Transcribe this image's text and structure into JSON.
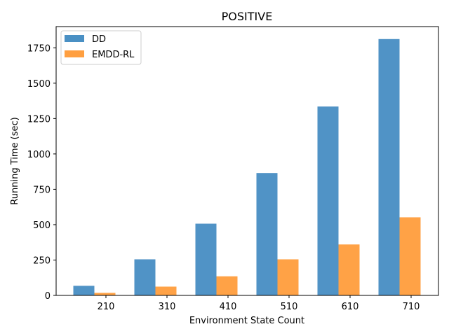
{
  "chart_data": {
    "type": "bar",
    "title": "POSITIVE",
    "xlabel": "Environment State Count",
    "ylabel": "Running Time (sec)",
    "categories": [
      "210",
      "310",
      "410",
      "510",
      "610",
      "710"
    ],
    "series": [
      {
        "name": "DD",
        "color": "#4a90c4",
        "values": [
          68,
          255,
          507,
          865,
          1335,
          1812
        ]
      },
      {
        "name": "EMDD-RL",
        "color": "#ff9f40",
        "values": [
          18,
          62,
          135,
          255,
          360,
          552
        ]
      }
    ],
    "ylim": [
      0,
      1900
    ],
    "yticks": [
      0,
      250,
      500,
      750,
      1000,
      1250,
      1500,
      1750
    ],
    "grid": false,
    "legend_position": "top-left"
  }
}
